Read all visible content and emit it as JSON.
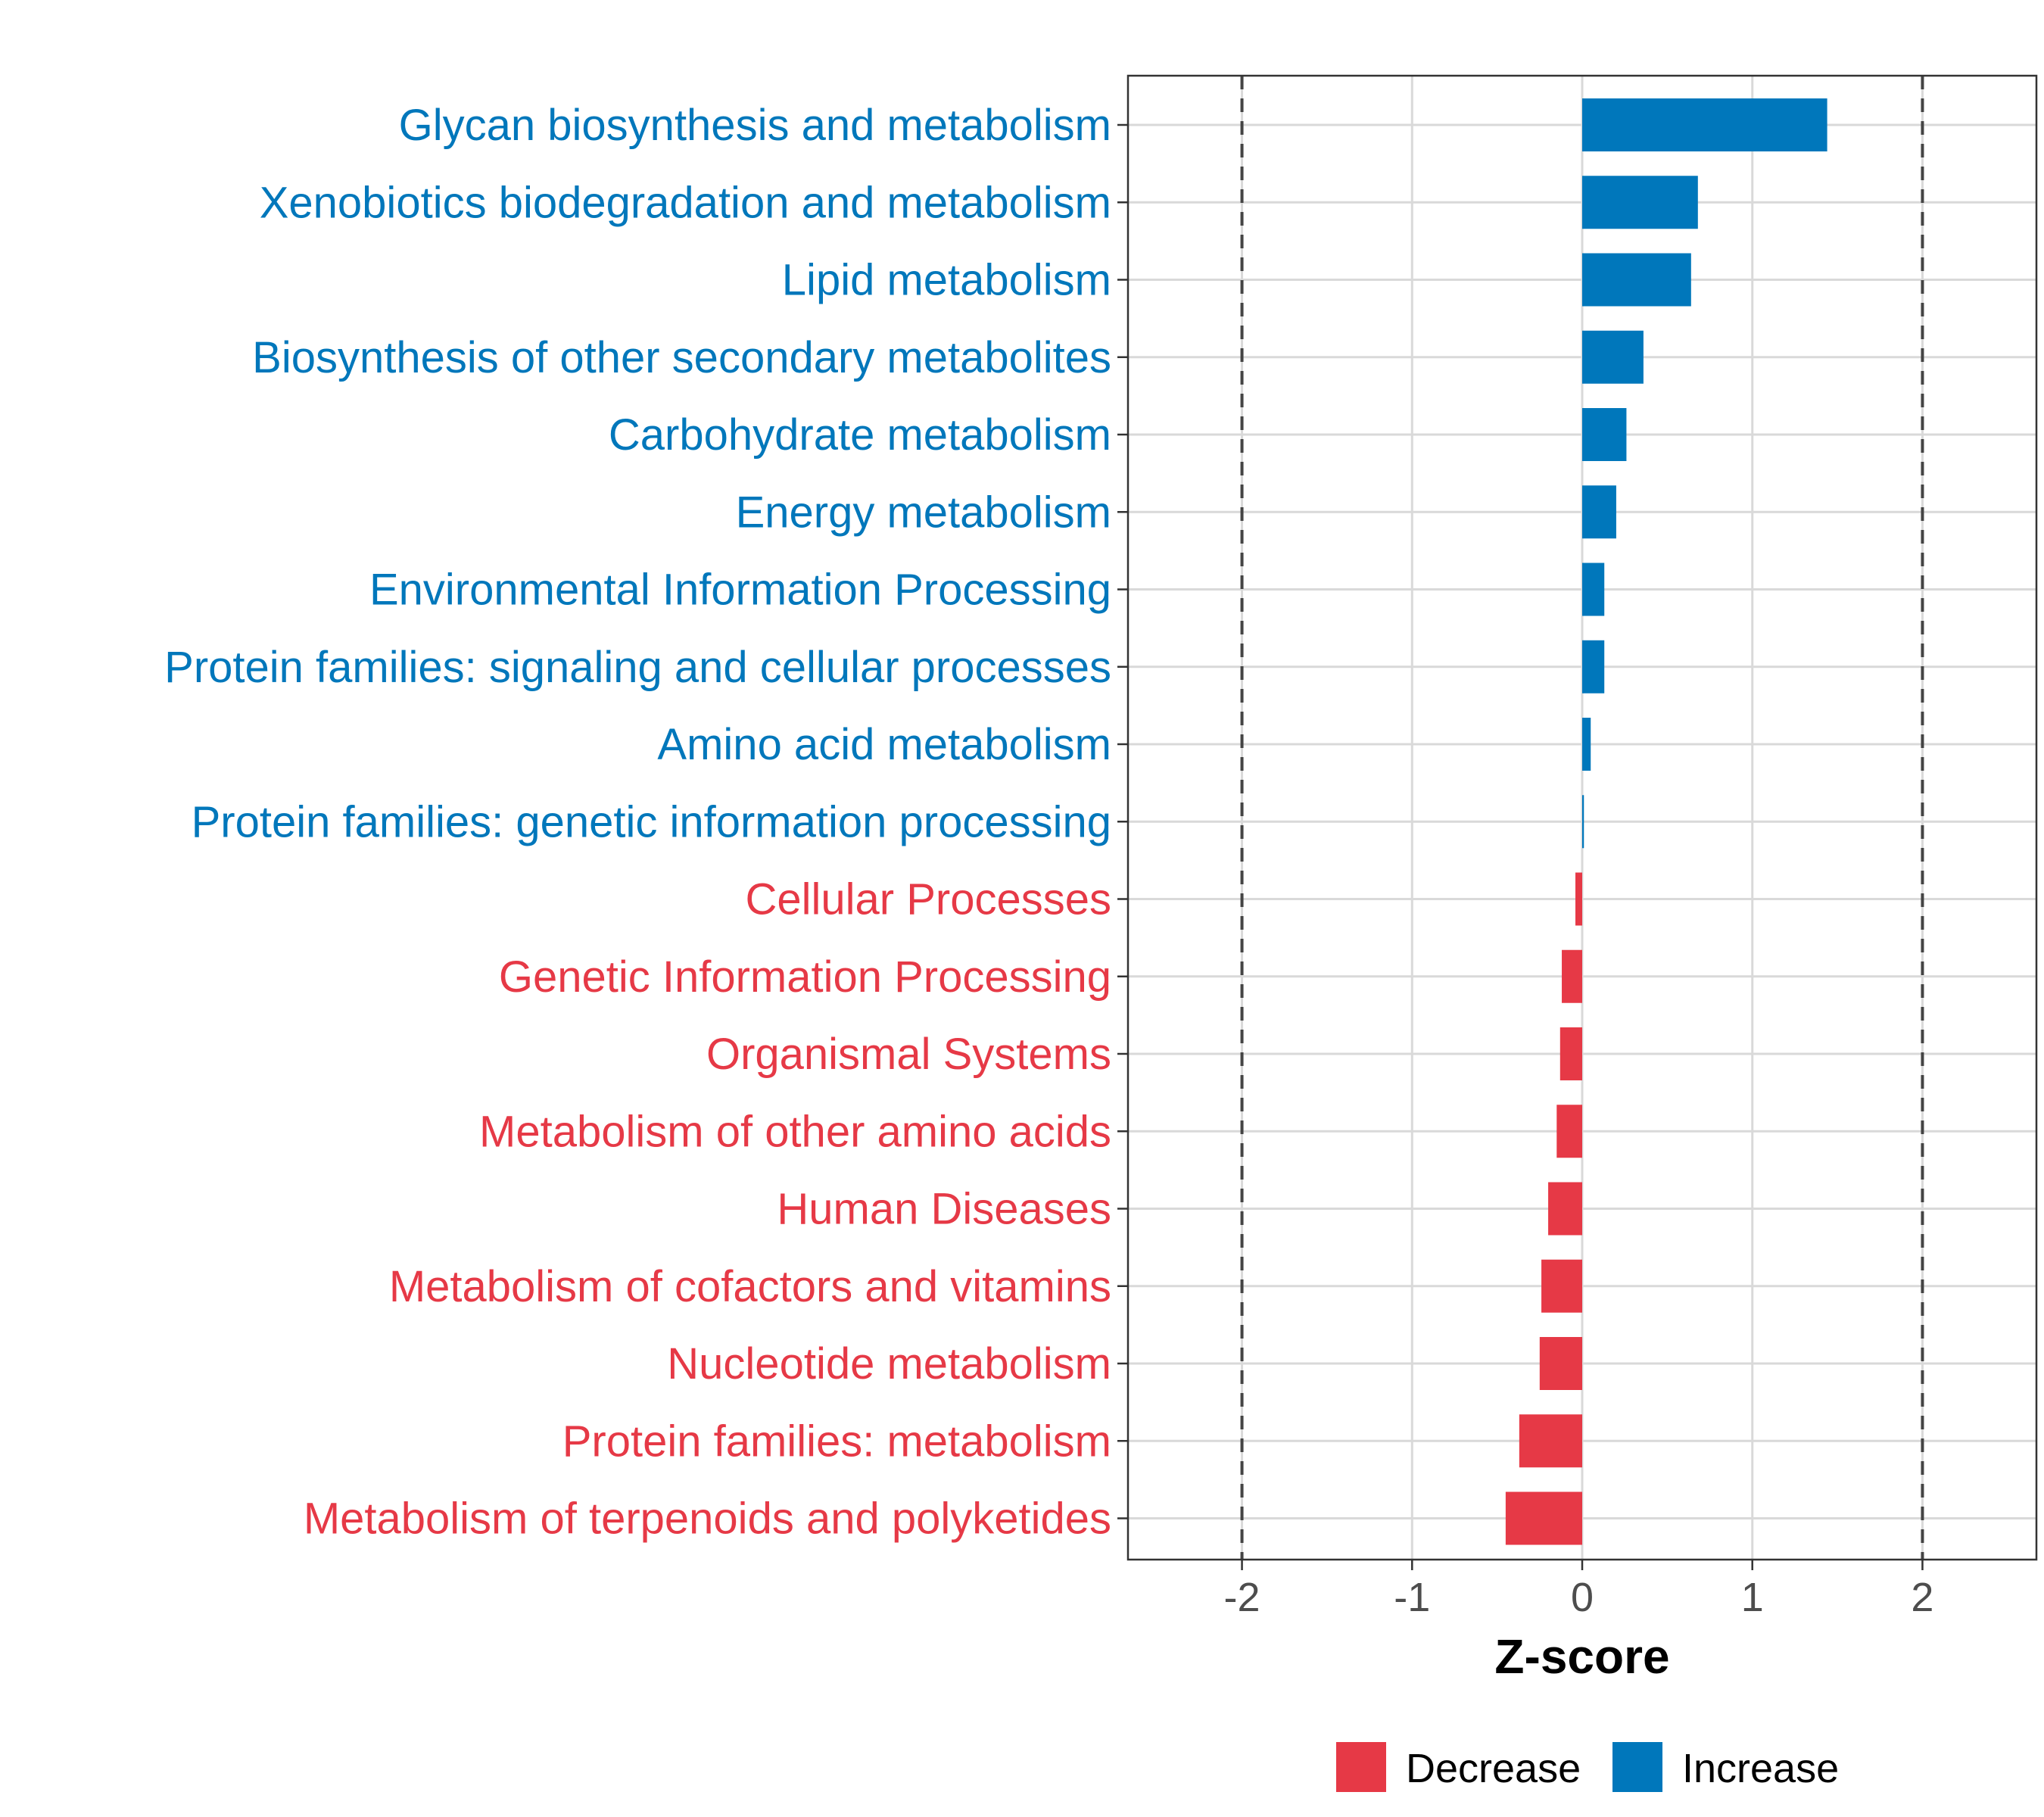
{
  "chart_data": {
    "type": "bar",
    "orientation": "horizontal",
    "title": "",
    "xlabel": "Z-score",
    "ylabel": "",
    "xlim": [
      -2.67,
      2.67
    ],
    "xticks": [
      -2,
      -1,
      0,
      1,
      2
    ],
    "tick_labels": [
      "-2",
      "-1",
      "0",
      "1",
      "2"
    ],
    "threshold_lines": [
      -2,
      2
    ],
    "grid": true,
    "legend_position": "bottom",
    "colors": {
      "Decrease": "#E63946",
      "Increase": "#0077BB",
      "threshold": "#444444"
    },
    "legend": [
      {
        "label": "Decrease",
        "group": "Decrease"
      },
      {
        "label": "Increase",
        "group": "Increase"
      }
    ],
    "categories": [
      "Glycan biosynthesis and metabolism",
      "Xenobiotics biodegradation and metabolism",
      "Lipid metabolism",
      "Biosynthesis of other secondary metabolites",
      "Carbohydrate metabolism",
      "Energy metabolism",
      "Environmental Information Processing",
      "Protein families: signaling and cellular processes",
      "Amino acid metabolism",
      "Protein families: genetic information processing",
      "Cellular Processes",
      "Genetic Information Processing",
      "Organismal Systems",
      "Metabolism of other amino acids",
      "Human Diseases",
      "Metabolism of cofactors and vitamins",
      "Nucleotide metabolism",
      "Protein families: metabolism",
      "Metabolism of terpenoids and polyketides"
    ],
    "values": [
      1.44,
      0.68,
      0.64,
      0.36,
      0.26,
      0.2,
      0.13,
      0.13,
      0.05,
      0.01,
      -0.04,
      -0.12,
      -0.13,
      -0.15,
      -0.2,
      -0.24,
      -0.25,
      -0.37,
      -0.45
    ],
    "groups": [
      "Increase",
      "Increase",
      "Increase",
      "Increase",
      "Increase",
      "Increase",
      "Increase",
      "Increase",
      "Increase",
      "Increase",
      "Decrease",
      "Decrease",
      "Decrease",
      "Decrease",
      "Decrease",
      "Decrease",
      "Decrease",
      "Decrease",
      "Decrease"
    ]
  }
}
